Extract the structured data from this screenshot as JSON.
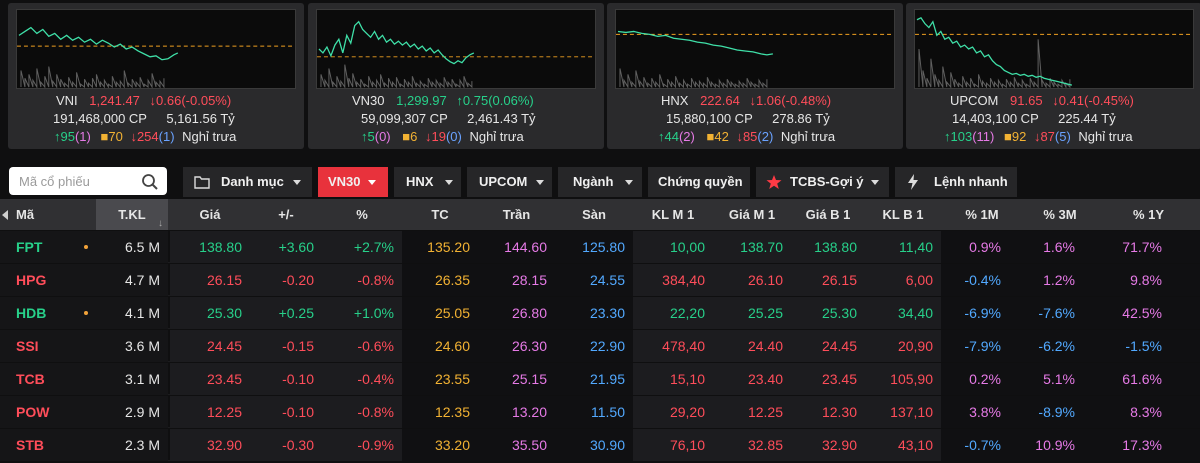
{
  "colors": {
    "up": "#27d08a",
    "down": "#ff4d5a",
    "ref": "#f2b233",
    "ceil": "#e67ae6",
    "floor": "#52a9ff",
    "accent": "#e8323c"
  },
  "indices": [
    {
      "name": "VNI",
      "value": "1,241.47",
      "change": "0.66(-0.05%)",
      "dir": "down",
      "volume": "191,468,000 CP",
      "turnover": "5,161.56 Tỷ",
      "adv": "95",
      "adv_ceil": "(1)",
      "unch": "70",
      "dec": "254",
      "dec_floor": "(1)",
      "session": "Nghỉ trưa"
    },
    {
      "name": "VN30",
      "value": "1,299.97",
      "change": "0.75(0.06%)",
      "dir": "up",
      "volume": "59,099,307 CP",
      "turnover": "2,461.43 Tỷ",
      "adv": "5",
      "adv_ceil": "(0)",
      "unch": "6",
      "dec": "19",
      "dec_floor": "(0)",
      "session": "Nghỉ trưa"
    },
    {
      "name": "HNX",
      "value": "222.64",
      "change": "1.06(-0.48%)",
      "dir": "down",
      "volume": "15,880,100 CP",
      "turnover": "278.86 Tỷ",
      "adv": "44",
      "adv_ceil": "(2)",
      "unch": "42",
      "dec": "85",
      "dec_floor": "(2)",
      "session": "Nghỉ trưa"
    },
    {
      "name": "UPCOM",
      "value": "91.65",
      "change": "0.41(-0.45%)",
      "dir": "down",
      "volume": "14,403,100 CP",
      "turnover": "225.44 Tỷ",
      "adv": "103",
      "adv_ceil": "(11)",
      "unch": "92",
      "dec": "87",
      "dec_floor": "(5)",
      "session": "Nghỉ trưa"
    }
  ],
  "search": {
    "placeholder": "Mã cổ phiếu"
  },
  "tabs": [
    {
      "label": "Danh mục",
      "icon": "folder-icon",
      "caret": true
    },
    {
      "label": "VN30",
      "active": true,
      "caret": true
    },
    {
      "label": "HNX",
      "caret": true
    },
    {
      "label": "UPCOM",
      "caret": true
    },
    {
      "label": "Ngành",
      "caret": true
    },
    {
      "label": "Chứng quyền",
      "caret": false
    },
    {
      "label": "TCBS-Gợi ý",
      "icon": "star-icon",
      "caret": true
    },
    {
      "label": "Lệnh nhanh",
      "icon": "lightning-icon",
      "caret": false
    }
  ],
  "columns": [
    "Mã",
    "T.KL",
    "Giá",
    "+/-",
    "%",
    "TC",
    "Trần",
    "Sàn",
    "KL M 1",
    "Giá M 1",
    "Giá B 1",
    "KL B 1",
    "% 1M",
    "% 3M",
    "% 1Y"
  ],
  "rows": [
    {
      "sym": "FPT",
      "dot": true,
      "vol": "6.5 M",
      "price": "138.80",
      "chg": "+3.60",
      "pct": "+2.7%",
      "tc": "135.20",
      "tran": "144.60",
      "san": "125.80",
      "klm1": "10,00",
      "giam1": "138.70",
      "giab1": "138.80",
      "klb1": "11,40",
      "p1m": "0.9%",
      "p3m": "1.6%",
      "p1y": "71.7%",
      "dir": "up"
    },
    {
      "sym": "HPG",
      "dot": false,
      "vol": "4.7 M",
      "price": "26.15",
      "chg": "-0.20",
      "pct": "-0.8%",
      "tc": "26.35",
      "tran": "28.15",
      "san": "24.55",
      "klm1": "384,40",
      "giam1": "26.10",
      "giab1": "26.15",
      "klb1": "6,00",
      "p1m": "-0.4%",
      "p3m": "1.2%",
      "p1y": "9.8%",
      "dir": "down"
    },
    {
      "sym": "HDB",
      "dot": true,
      "vol": "4.1 M",
      "price": "25.30",
      "chg": "+0.25",
      "pct": "+1.0%",
      "tc": "25.05",
      "tran": "26.80",
      "san": "23.30",
      "klm1": "22,20",
      "giam1": "25.25",
      "giab1": "25.30",
      "klb1": "34,40",
      "p1m": "-6.9%",
      "p3m": "-7.6%",
      "p1y": "42.5%",
      "dir": "up"
    },
    {
      "sym": "SSI",
      "dot": false,
      "vol": "3.6 M",
      "price": "24.45",
      "chg": "-0.15",
      "pct": "-0.6%",
      "tc": "24.60",
      "tran": "26.30",
      "san": "22.90",
      "klm1": "478,40",
      "giam1": "24.40",
      "giab1": "24.45",
      "klb1": "20,90",
      "p1m": "-7.9%",
      "p3m": "-6.2%",
      "p1y": "-1.5%",
      "dir": "down"
    },
    {
      "sym": "TCB",
      "dot": false,
      "vol": "3.1 M",
      "price": "23.45",
      "chg": "-0.10",
      "pct": "-0.4%",
      "tc": "23.55",
      "tran": "25.15",
      "san": "21.95",
      "klm1": "15,10",
      "giam1": "23.40",
      "giab1": "23.45",
      "klb1": "105,90",
      "p1m": "0.2%",
      "p3m": "5.1%",
      "p1y": "61.6%",
      "dir": "down"
    },
    {
      "sym": "POW",
      "dot": false,
      "vol": "2.9 M",
      "price": "12.25",
      "chg": "-0.10",
      "pct": "-0.8%",
      "tc": "12.35",
      "tran": "13.20",
      "san": "11.50",
      "klm1": "29,20",
      "giam1": "12.25",
      "giab1": "12.30",
      "klb1": "137,10",
      "p1m": "3.8%",
      "p3m": "-8.9%",
      "p1y": "8.3%",
      "dir": "down"
    },
    {
      "sym": "STB",
      "dot": false,
      "vol": "2.3 M",
      "price": "32.90",
      "chg": "-0.30",
      "pct": "-0.9%",
      "tc": "33.20",
      "tran": "35.50",
      "san": "30.90",
      "klm1": "76,10",
      "giam1": "32.85",
      "giab1": "32.90",
      "klb1": "43,10",
      "p1m": "-0.7%",
      "p3m": "10.9%",
      "p1y": "17.3%",
      "dir": "down"
    }
  ]
}
